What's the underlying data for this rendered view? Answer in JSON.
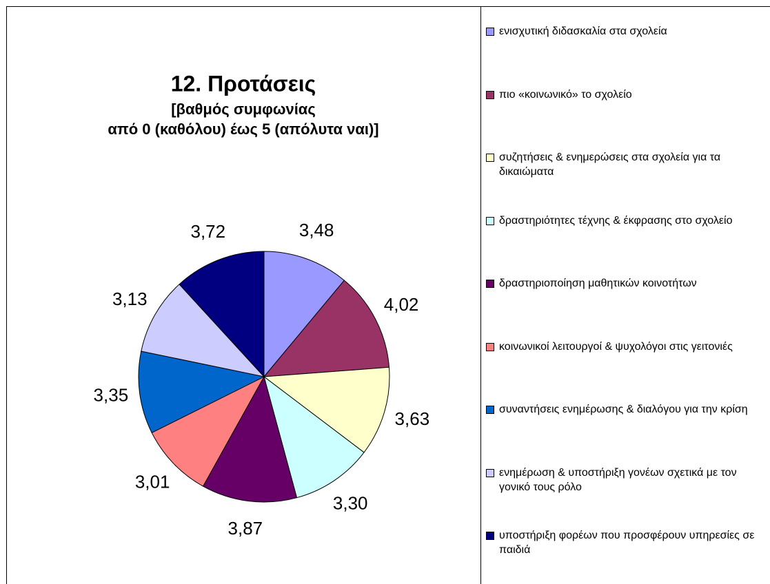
{
  "chart_data": {
    "type": "pie",
    "title": "12. Προτάσεις",
    "subtitle": [
      "[βαθμός συμφωνίας",
      "από 0 (καθόλου) έως 5 (απόλυτα ναι)]"
    ],
    "series": [
      {
        "categories": [
          "ενισχυτική διδασκαλία στα σχολεία",
          "πιο «κοινωνικό» το σχολείο",
          "συζητήσεις & ενημερώσεις στα σχολεία για τα δικαιώματα",
          "δραστηριότητες τέχνης & έκφρασης στο σχολείο",
          "δραστηριοποίηση μαθητικών κοινοτήτων",
          "κοινωνικοί λειτουργοί & ψυχολόγοι στις γειτονιές",
          "συναντήσεις ενημέρωσης & διαλόγου για την κρίση",
          "ενημέρωση & υποστήριξη γονέων σχετικά με τον γονικό τους ρόλο",
          "υποστήριξη φορέων που προσφέρουν υπηρεσίες σε παιδιά"
        ],
        "values": [
          3.48,
          4.02,
          3.63,
          3.3,
          3.87,
          3.01,
          3.35,
          3.13,
          3.72
        ],
        "value_labels": [
          "3,48",
          "4,02",
          "3,63",
          "3,30",
          "3,87",
          "3,01",
          "3,35",
          "3,13",
          "3,72"
        ],
        "colors": [
          "#9999ff",
          "#993366",
          "#ffffcc",
          "#ccffff",
          "#660066",
          "#ff8080",
          "#0066cc",
          "#ccccff",
          "#000080"
        ]
      }
    ],
    "legend": "right"
  }
}
